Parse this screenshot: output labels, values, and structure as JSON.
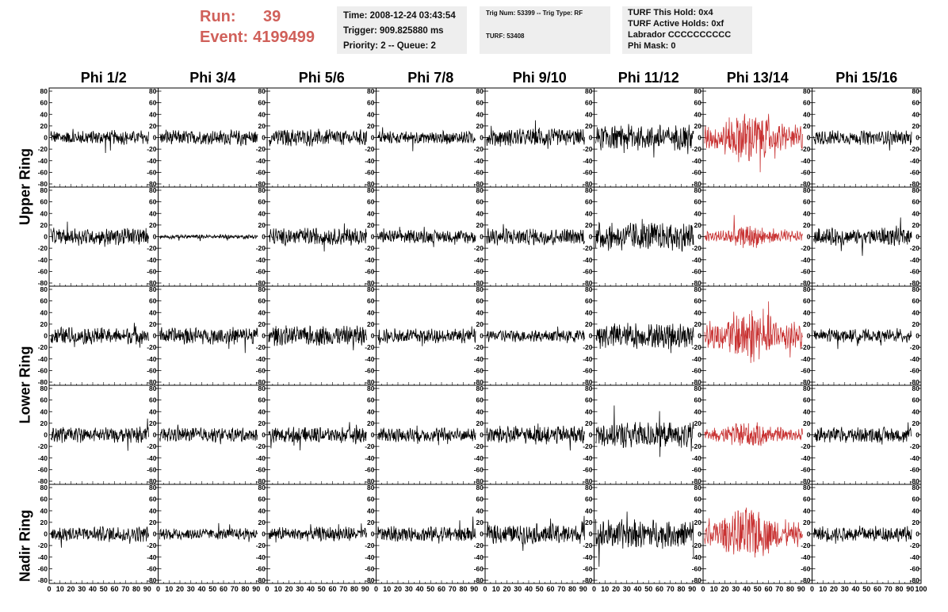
{
  "header": {
    "run_label": "Run:",
    "run_value": "39",
    "event_label": "Event:",
    "event_value": "4199499",
    "accent_color": "#d0605a"
  },
  "info_time": {
    "time": "Time: 2008-12-24 03:43:54",
    "trigger": "Trigger: 909.825880 ms",
    "priority": "Priority: 2 -- Queue: 2"
  },
  "info_trig": {
    "trig": "Trig Num: 53399 -- Trig Type: RF",
    "turf": "TURF: 53408"
  },
  "info_turf": {
    "hold": "TURF This Hold: 0x4",
    "active": "TURF Active Holds: 0xf",
    "labrador": "Labrador CCCCCCCCCC",
    "phimask": "Phi Mask: 0"
  },
  "ring_labels": [
    "Upper Ring",
    "Lower Ring",
    "Nadir Ring"
  ],
  "chart_data": {
    "type": "line",
    "columns": [
      "Phi 1/2",
      "Phi 3/4",
      "Phi 5/6",
      "Phi 7/8",
      "Phi 9/10",
      "Phi 11/12",
      "Phi 13/14",
      "Phi 15/16"
    ],
    "rows": 5,
    "ylim": [
      -80,
      80
    ],
    "yticks": [
      80,
      60,
      40,
      20,
      0,
      -20,
      -40,
      -60,
      -80
    ],
    "xlim": [
      0,
      100
    ],
    "xticks": [
      0,
      10,
      20,
      30,
      40,
      50,
      60,
      70,
      80,
      90,
      100
    ],
    "grid": false,
    "line_color": "#000000",
    "highlight_color": "#c83232",
    "highlight_column": 6,
    "samples_per_trace": 260,
    "amplitude": [
      [
        10,
        10,
        12,
        9,
        12,
        18,
        28,
        10
      ],
      [
        12,
        3,
        12,
        9,
        12,
        20,
        12,
        12
      ],
      [
        12,
        12,
        14,
        10,
        9,
        18,
        30,
        9
      ],
      [
        11,
        10,
        11,
        10,
        13,
        18,
        14,
        11
      ],
      [
        11,
        8,
        10,
        11,
        14,
        20,
        28,
        11
      ]
    ]
  }
}
